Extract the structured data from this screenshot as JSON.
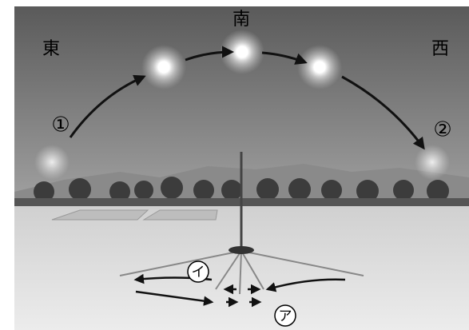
{
  "directions": [
    "東",
    "南",
    "西"
  ],
  "numbers": [
    "①",
    "②"
  ],
  "shadow_labels": [
    "イ",
    "ア"
  ]
}
